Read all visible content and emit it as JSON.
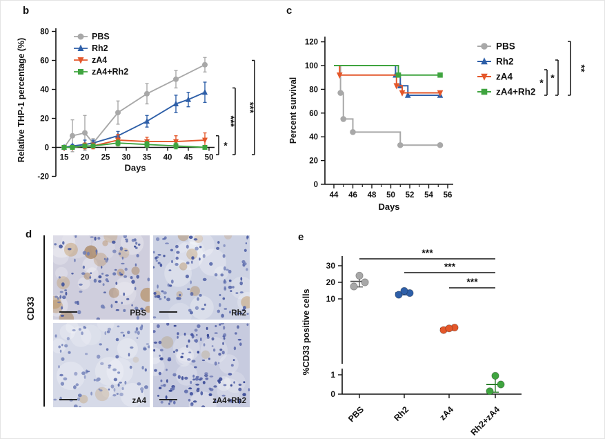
{
  "colors": {
    "pbs": "#a8a8a8",
    "rh2": "#2e5fa8",
    "za4": "#e4572a",
    "za4rh2": "#3fa43f",
    "pbs_dark": "#5a5a5a",
    "rh2_dark": "#1d4a8f",
    "za4_dark": "#bc3c10",
    "za4rh2_dark": "#2d7f2d",
    "axis": "#111111"
  },
  "panels": {
    "b": {
      "label": "b"
    },
    "c": {
      "label": "c"
    },
    "d": {
      "label": "d"
    },
    "e": {
      "label": "e"
    }
  },
  "panel_d": {
    "side_label": "CD33",
    "images": [
      {
        "label": "PBS",
        "stain": "brown-heavy"
      },
      {
        "label": "Rh2",
        "stain": "brown-medium"
      },
      {
        "label": "zA4",
        "stain": "blue-light"
      },
      {
        "label": "zA4+Rh2",
        "stain": "blue-dense"
      }
    ]
  },
  "chart_data": [
    {
      "id": "panel_b",
      "type": "line",
      "xlabel": "Days",
      "ylabel": "Relative THP-1 percentage (%)",
      "xlim": [
        13,
        52
      ],
      "ylim": [
        -20,
        85
      ],
      "xticks": [
        15,
        20,
        25,
        30,
        35,
        40,
        45,
        50
      ],
      "yticks": [
        -20,
        0,
        20,
        40,
        60,
        80
      ],
      "legend_position": "top-left-inside",
      "series": [
        {
          "name": "PBS",
          "marker": "circle",
          "color_key": "pbs",
          "x": [
            15,
            17,
            20,
            22,
            28,
            35,
            42,
            49
          ],
          "y": [
            0,
            8,
            10,
            3,
            24,
            37,
            47,
            57
          ],
          "err": [
            1,
            11,
            12,
            3,
            8,
            7,
            6,
            5
          ]
        },
        {
          "name": "Rh2",
          "marker": "triangle-up",
          "color_key": "rh2",
          "x": [
            15,
            17,
            20,
            22,
            28,
            35,
            42,
            45,
            49
          ],
          "y": [
            0,
            1,
            2,
            3,
            8,
            18,
            30,
            33,
            38
          ],
          "err": [
            1,
            1,
            3,
            2,
            3,
            4,
            6,
            5,
            7
          ]
        },
        {
          "name": "zA4",
          "marker": "triangle-down",
          "color_key": "za4",
          "x": [
            15,
            17,
            20,
            22,
            28,
            35,
            42,
            49
          ],
          "y": [
            0,
            0,
            1,
            1,
            5,
            4,
            4,
            5
          ],
          "err": [
            1,
            1,
            2,
            2,
            4,
            3,
            4,
            5
          ]
        },
        {
          "name": "zA4+Rh2",
          "marker": "square",
          "color_key": "za4rh2",
          "x": [
            15,
            17,
            20,
            22,
            28,
            35,
            42,
            49
          ],
          "y": [
            0,
            0,
            1,
            1,
            3,
            2,
            1,
            0
          ],
          "err": [
            1,
            1,
            1,
            1,
            2,
            2,
            2,
            1
          ]
        }
      ],
      "significance": [
        {
          "label": "*",
          "y_from": -5,
          "y_to": 8
        },
        {
          "label": "***",
          "y_from": -5,
          "y_to": 41
        },
        {
          "label": "***",
          "y_from": -5,
          "y_to": 60
        }
      ]
    },
    {
      "id": "panel_c",
      "type": "line",
      "subtype": "survival-step",
      "xlabel": "Days",
      "ylabel": "Percent survival",
      "xlim": [
        43.5,
        56.5
      ],
      "ylim": [
        0,
        125
      ],
      "xticks": [
        44,
        46,
        48,
        50,
        52,
        54,
        56
      ],
      "yticks": [
        0,
        20,
        40,
        60,
        80,
        100,
        120
      ],
      "legend_position": "right-outside",
      "series": [
        {
          "name": "PBS",
          "marker": "circle",
          "color_key": "pbs",
          "points": [
            [
              44,
              100
            ],
            [
              44.7,
              77
            ],
            [
              45,
              55
            ],
            [
              46,
              44
            ],
            [
              51,
              33
            ],
            [
              55.2,
              33
            ]
          ]
        },
        {
          "name": "Rh2",
          "marker": "triangle-up",
          "color_key": "rh2",
          "points": [
            [
              44,
              100
            ],
            [
              50.5,
              92
            ],
            [
              51,
              83
            ],
            [
              51.8,
              75
            ],
            [
              55.2,
              75
            ]
          ]
        },
        {
          "name": "zA4",
          "marker": "triangle-down",
          "color_key": "za4",
          "points": [
            [
              44,
              100
            ],
            [
              44.6,
              92
            ],
            [
              50.6,
              83
            ],
            [
              51.2,
              77
            ],
            [
              55.2,
              77
            ]
          ]
        },
        {
          "name": "zA4+Rh2",
          "marker": "square",
          "color_key": "za4rh2",
          "points": [
            [
              44,
              100
            ],
            [
              50.8,
              92
            ],
            [
              55.2,
              92
            ]
          ]
        }
      ],
      "significance": [
        {
          "label": "*"
        },
        {
          "label": "*"
        },
        {
          "label": "**"
        }
      ]
    },
    {
      "id": "panel_e",
      "type": "scatter",
      "ylabel": "%CD33 positive cells",
      "yticks": [
        0,
        1,
        10,
        20,
        30
      ],
      "axis_break": {
        "between": [
          1,
          10
        ]
      },
      "categories": [
        "PBS",
        "Rh2",
        "zA4",
        "Rh2+zA4"
      ],
      "groups": [
        {
          "name": "PBS",
          "color_key": "pbs",
          "values": [
            17.5,
            20,
            24
          ],
          "mean": 20.5,
          "sd": 3.3
        },
        {
          "name": "Rh2",
          "color_key": "rh2",
          "values": [
            12.5,
            13.5,
            14.8
          ],
          "mean": 13.6,
          "sd": 1.2
        },
        {
          "name": "zA4",
          "color_key": "za4",
          "values": [
            6.3,
            6.6,
            6.5
          ],
          "mean": 6.5,
          "sd": 0.2
        },
        {
          "name": "Rh2+zA4",
          "color_key": "za4rh2",
          "values": [
            0.15,
            0.5,
            0.95
          ],
          "mean": 0.5,
          "sd": 0.4
        }
      ],
      "significance": [
        {
          "label": "***",
          "from": "PBS",
          "to": "Rh2+zA4"
        },
        {
          "label": "***",
          "from": "Rh2",
          "to": "Rh2+zA4"
        },
        {
          "label": "***",
          "from": "zA4",
          "to": "Rh2+zA4"
        }
      ]
    }
  ]
}
